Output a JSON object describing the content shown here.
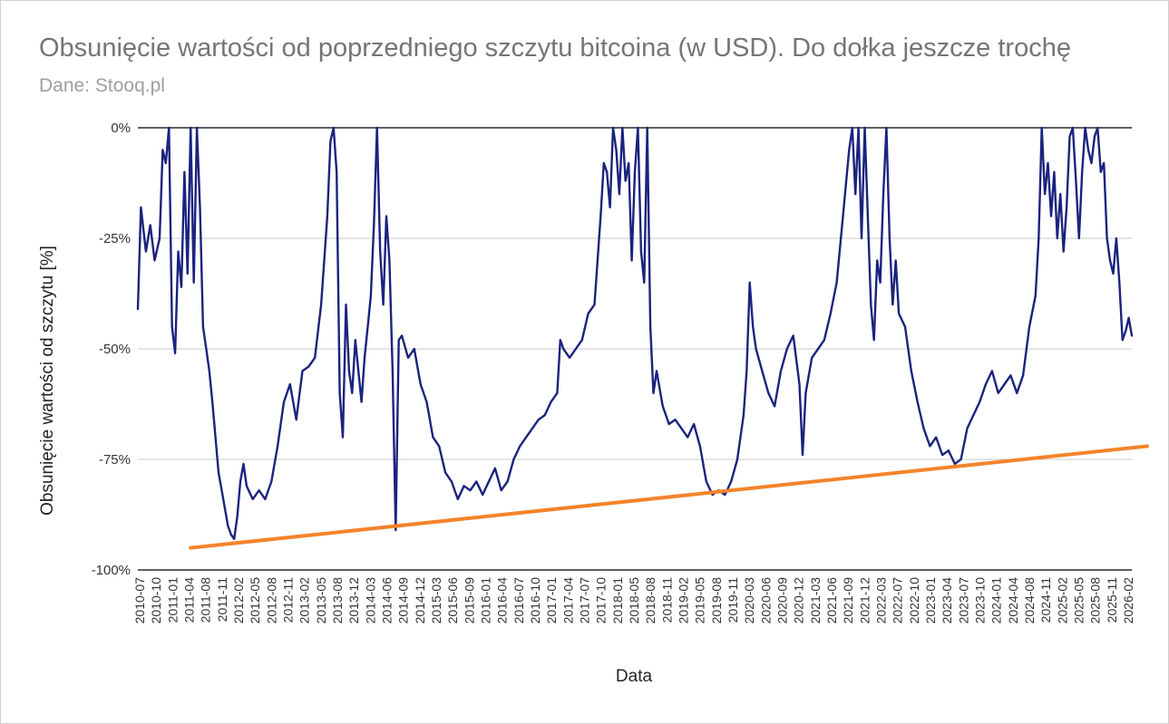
{
  "chart_data": {
    "type": "line",
    "title": "Obsunięcie wartości od poprzedniego szczytu bitcoina (w USD). Do dołka jeszcze trochę",
    "subtitle": "Dane: Stooq.pl",
    "xlabel": "Data",
    "ylabel": "Obsunięcie wartości od szczytu [%]",
    "ylim": [
      -100,
      0
    ],
    "yticks": [
      0,
      -25,
      -50,
      -75,
      -100
    ],
    "ytick_labels": [
      "0%",
      "-25%",
      "-50%",
      "-75%",
      "-100%"
    ],
    "xticks": [
      "2010-07",
      "2010-10",
      "2011-01",
      "2011-04",
      "2011-08",
      "2011-11",
      "2012-02",
      "2012-05",
      "2012-08",
      "2012-11",
      "2013-02",
      "2013-05",
      "2013-08",
      "2013-12",
      "2014-03",
      "2014-06",
      "2014-09",
      "2014-12",
      "2015-03",
      "2015-06",
      "2015-09",
      "2016-01",
      "2016-04",
      "2016-07",
      "2016-10",
      "2017-01",
      "2017-04",
      "2017-07",
      "2017-10",
      "2018-01",
      "2018-05",
      "2018-08",
      "2018-11",
      "2019-02",
      "2019-05",
      "2019-08",
      "2019-11",
      "2020-03",
      "2020-06",
      "2020-09",
      "2020-12",
      "2021-03",
      "2021-06",
      "2021-09",
      "2021-12",
      "2022-03",
      "2022-07",
      "2022-10",
      "2023-01",
      "2023-04",
      "2023-07",
      "2023-10",
      "2024-01",
      "2024-04",
      "2024-08",
      "2024-11",
      "2025-02",
      "2025-05",
      "2025-08",
      "2025-11",
      "2026-02"
    ],
    "grid": true,
    "series": [
      {
        "color": "#1a237e",
        "points": [
          [
            2010.55,
            -41
          ],
          [
            2010.6,
            -18
          ],
          [
            2010.68,
            -28
          ],
          [
            2010.75,
            -22
          ],
          [
            2010.82,
            -30
          ],
          [
            2010.9,
            -25
          ],
          [
            2010.95,
            -5
          ],
          [
            2011.0,
            -8
          ],
          [
            2011.05,
            0
          ],
          [
            2011.1,
            -45
          ],
          [
            2011.15,
            -51
          ],
          [
            2011.2,
            -28
          ],
          [
            2011.25,
            -36
          ],
          [
            2011.3,
            -10
          ],
          [
            2011.35,
            -33
          ],
          [
            2011.4,
            0
          ],
          [
            2011.45,
            -35
          ],
          [
            2011.5,
            0
          ],
          [
            2011.55,
            -18
          ],
          [
            2011.6,
            -45
          ],
          [
            2011.65,
            -50
          ],
          [
            2011.7,
            -55
          ],
          [
            2011.75,
            -62
          ],
          [
            2011.8,
            -70
          ],
          [
            2011.85,
            -78
          ],
          [
            2011.9,
            -82
          ],
          [
            2011.95,
            -86
          ],
          [
            2012.0,
            -90
          ],
          [
            2012.05,
            -92
          ],
          [
            2012.1,
            -93
          ],
          [
            2012.15,
            -88
          ],
          [
            2012.2,
            -80
          ],
          [
            2012.25,
            -76
          ],
          [
            2012.3,
            -81
          ],
          [
            2012.4,
            -84
          ],
          [
            2012.5,
            -82
          ],
          [
            2012.6,
            -84
          ],
          [
            2012.7,
            -80
          ],
          [
            2012.8,
            -72
          ],
          [
            2012.9,
            -62
          ],
          [
            2013.0,
            -58
          ],
          [
            2013.1,
            -66
          ],
          [
            2013.2,
            -55
          ],
          [
            2013.3,
            -54
          ],
          [
            2013.4,
            -52
          ],
          [
            2013.5,
            -40
          ],
          [
            2013.6,
            -20
          ],
          [
            2013.65,
            -3
          ],
          [
            2013.7,
            0
          ],
          [
            2013.75,
            -10
          ],
          [
            2013.8,
            -60
          ],
          [
            2013.85,
            -70
          ],
          [
            2013.9,
            -40
          ],
          [
            2013.95,
            -55
          ],
          [
            2014.0,
            -60
          ],
          [
            2014.05,
            -48
          ],
          [
            2014.1,
            -55
          ],
          [
            2014.15,
            -62
          ],
          [
            2014.2,
            -52
          ],
          [
            2014.25,
            -45
          ],
          [
            2014.3,
            -38
          ],
          [
            2014.35,
            -22
          ],
          [
            2014.4,
            0
          ],
          [
            2014.45,
            -28
          ],
          [
            2014.5,
            -40
          ],
          [
            2014.55,
            -20
          ],
          [
            2014.6,
            -30
          ],
          [
            2014.65,
            -55
          ],
          [
            2014.7,
            -91
          ],
          [
            2014.75,
            -48
          ],
          [
            2014.8,
            -47
          ],
          [
            2014.9,
            -52
          ],
          [
            2015.0,
            -50
          ],
          [
            2015.1,
            -58
          ],
          [
            2015.2,
            -62
          ],
          [
            2015.3,
            -70
          ],
          [
            2015.4,
            -72
          ],
          [
            2015.5,
            -78
          ],
          [
            2015.6,
            -80
          ],
          [
            2015.7,
            -84
          ],
          [
            2015.8,
            -81
          ],
          [
            2015.9,
            -82
          ],
          [
            2016.0,
            -80
          ],
          [
            2016.1,
            -83
          ],
          [
            2016.2,
            -80
          ],
          [
            2016.3,
            -77
          ],
          [
            2016.4,
            -82
          ],
          [
            2016.5,
            -80
          ],
          [
            2016.6,
            -75
          ],
          [
            2016.7,
            -72
          ],
          [
            2016.8,
            -70
          ],
          [
            2016.9,
            -68
          ],
          [
            2017.0,
            -66
          ],
          [
            2017.1,
            -65
          ],
          [
            2017.2,
            -62
          ],
          [
            2017.3,
            -60
          ],
          [
            2017.35,
            -48
          ],
          [
            2017.4,
            -50
          ],
          [
            2017.5,
            -52
          ],
          [
            2017.6,
            -50
          ],
          [
            2017.7,
            -48
          ],
          [
            2017.8,
            -42
          ],
          [
            2017.9,
            -40
          ],
          [
            2018.0,
            -20
          ],
          [
            2018.05,
            -8
          ],
          [
            2018.1,
            -10
          ],
          [
            2018.15,
            -18
          ],
          [
            2018.2,
            0
          ],
          [
            2018.25,
            -5
          ],
          [
            2018.3,
            -15
          ],
          [
            2018.35,
            0
          ],
          [
            2018.4,
            -12
          ],
          [
            2018.45,
            -8
          ],
          [
            2018.5,
            -30
          ],
          [
            2018.55,
            -10
          ],
          [
            2018.6,
            0
          ],
          [
            2018.65,
            -28
          ],
          [
            2018.7,
            -35
          ],
          [
            2018.75,
            0
          ],
          [
            2018.8,
            -45
          ],
          [
            2018.85,
            -60
          ],
          [
            2018.9,
            -55
          ],
          [
            2019.0,
            -63
          ],
          [
            2019.1,
            -67
          ],
          [
            2019.2,
            -66
          ],
          [
            2019.3,
            -68
          ],
          [
            2019.4,
            -70
          ],
          [
            2019.5,
            -67
          ],
          [
            2019.6,
            -72
          ],
          [
            2019.7,
            -80
          ],
          [
            2019.8,
            -83
          ],
          [
            2019.9,
            -82
          ],
          [
            2020.0,
            -83
          ],
          [
            2020.1,
            -80
          ],
          [
            2020.2,
            -75
          ],
          [
            2020.3,
            -65
          ],
          [
            2020.35,
            -55
          ],
          [
            2020.4,
            -35
          ],
          [
            2020.45,
            -45
          ],
          [
            2020.5,
            -50
          ],
          [
            2020.6,
            -55
          ],
          [
            2020.7,
            -60
          ],
          [
            2020.8,
            -63
          ],
          [
            2020.9,
            -55
          ],
          [
            2021.0,
            -50
          ],
          [
            2021.1,
            -47
          ],
          [
            2021.2,
            -58
          ],
          [
            2021.25,
            -74
          ],
          [
            2021.3,
            -60
          ],
          [
            2021.4,
            -52
          ],
          [
            2021.5,
            -50
          ],
          [
            2021.6,
            -48
          ],
          [
            2021.7,
            -42
          ],
          [
            2021.8,
            -35
          ],
          [
            2021.9,
            -20
          ],
          [
            2022.0,
            -5
          ],
          [
            2022.05,
            0
          ],
          [
            2022.1,
            -15
          ],
          [
            2022.15,
            0
          ],
          [
            2022.2,
            -25
          ],
          [
            2022.25,
            0
          ],
          [
            2022.3,
            -20
          ],
          [
            2022.35,
            -40
          ],
          [
            2022.4,
            -48
          ],
          [
            2022.45,
            -30
          ],
          [
            2022.5,
            -35
          ],
          [
            2022.55,
            -15
          ],
          [
            2022.6,
            0
          ],
          [
            2022.65,
            -25
          ],
          [
            2022.7,
            -40
          ],
          [
            2022.75,
            -30
          ],
          [
            2022.8,
            -42
          ],
          [
            2022.9,
            -45
          ],
          [
            2023.0,
            -55
          ],
          [
            2023.1,
            -62
          ],
          [
            2023.2,
            -68
          ],
          [
            2023.3,
            -72
          ],
          [
            2023.4,
            -70
          ],
          [
            2023.5,
            -74
          ],
          [
            2023.6,
            -73
          ],
          [
            2023.7,
            -76
          ],
          [
            2023.8,
            -75
          ],
          [
            2023.9,
            -68
          ],
          [
            2024.0,
            -65
          ],
          [
            2024.1,
            -62
          ],
          [
            2024.2,
            -58
          ],
          [
            2024.3,
            -55
          ],
          [
            2024.4,
            -60
          ],
          [
            2024.5,
            -58
          ],
          [
            2024.6,
            -56
          ],
          [
            2024.7,
            -60
          ],
          [
            2024.8,
            -56
          ],
          [
            2024.9,
            -45
          ],
          [
            2025.0,
            -38
          ],
          [
            2025.05,
            -25
          ],
          [
            2025.1,
            0
          ],
          [
            2025.15,
            -15
          ],
          [
            2025.2,
            -8
          ],
          [
            2025.25,
            -20
          ],
          [
            2025.3,
            -10
          ],
          [
            2025.35,
            -25
          ],
          [
            2025.4,
            -15
          ],
          [
            2025.45,
            -28
          ],
          [
            2025.5,
            -18
          ],
          [
            2025.55,
            -2
          ],
          [
            2025.6,
            0
          ],
          [
            2025.65,
            -12
          ],
          [
            2025.7,
            -25
          ],
          [
            2025.75,
            -10
          ],
          [
            2025.8,
            0
          ],
          [
            2025.85,
            -5
          ],
          [
            2025.9,
            -8
          ],
          [
            2025.95,
            -2
          ],
          [
            2026.0,
            0
          ],
          [
            2026.05,
            -10
          ],
          [
            2026.1,
            -8
          ],
          [
            2026.15,
            -25
          ],
          [
            2026.2,
            -30
          ],
          [
            2026.25,
            -33
          ],
          [
            2026.3,
            -25
          ],
          [
            2026.35,
            -35
          ],
          [
            2026.4,
            -48
          ],
          [
            2026.45,
            -46
          ],
          [
            2026.5,
            -43
          ],
          [
            2026.55,
            -47
          ]
        ]
      },
      {
        "color": "#f4832a",
        "points": [
          [
            2011.4,
            -95
          ],
          [
            2026.8,
            -72
          ]
        ]
      }
    ]
  }
}
